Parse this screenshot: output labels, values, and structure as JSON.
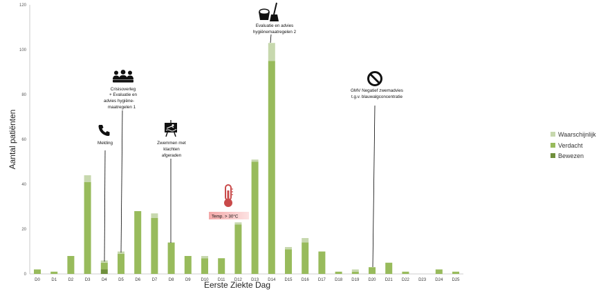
{
  "chart_data": {
    "type": "bar",
    "stacked": true,
    "xlabel": "Eerste Ziekte Dag",
    "ylabel": "Aantal patiënten",
    "ylim": [
      0,
      120
    ],
    "yticks": [
      0,
      20,
      40,
      60,
      80,
      100,
      120
    ],
    "grid": false,
    "legend_position": "right",
    "categories": [
      "D0",
      "D1",
      "D2",
      "D3",
      "D4",
      "D5",
      "D6",
      "D7",
      "D8",
      "D9",
      "D10",
      "D11",
      "D12",
      "D13",
      "D14",
      "D15",
      "D16",
      "D17",
      "D18",
      "D19",
      "D20",
      "D21",
      "D22",
      "D23",
      "D24",
      "D25"
    ],
    "series": [
      {
        "name": "Bewezen",
        "color": "#6f8f3c",
        "values": [
          0,
          0,
          0,
          0,
          2,
          0,
          0,
          0,
          0,
          0,
          0,
          0,
          0,
          0,
          0,
          0,
          0,
          0,
          0,
          0,
          0,
          0,
          0,
          0,
          0,
          0
        ]
      },
      {
        "name": "Verdacht",
        "color": "#98bb5c",
        "values": [
          2,
          1,
          8,
          41,
          3,
          9,
          28,
          25,
          14,
          8,
          7,
          7,
          22,
          50,
          95,
          11,
          14,
          10,
          1,
          1,
          3,
          5,
          1,
          0,
          2,
          1
        ]
      },
      {
        "name": "Waarschijnlijk",
        "color": "#c7d8ae",
        "values": [
          0,
          0,
          0,
          3,
          1,
          1,
          0,
          2,
          0,
          0,
          1,
          0,
          1,
          1,
          8,
          1,
          2,
          0,
          0,
          1,
          0,
          0,
          0,
          0,
          0,
          0
        ]
      }
    ],
    "legend_order": [
      "Waarschijnlijk",
      "Verdacht",
      "Bewezen"
    ],
    "annotations": [
      {
        "category": "D4",
        "icon": "phone-icon",
        "lines": [
          "Melding"
        ]
      },
      {
        "category": "D5",
        "icon": "group-icon",
        "lines": [
          "Crisisoverleg",
          "+ Evaluatie en",
          "advies hygiëne-",
          "maatregelen 1"
        ]
      },
      {
        "category": "D8",
        "icon": "swimmer-sign-icon",
        "lines": [
          "Zwemmen met",
          "klachten",
          "afgeraden"
        ]
      },
      {
        "category": "D14",
        "icon": "cleaning-icon",
        "lines": [
          "Evaluatie en advies",
          "hygiënemaatregelen 2"
        ]
      },
      {
        "category": "D20",
        "icon": "prohibited-icon",
        "lines": [
          "GMV Negatief zwemadvies",
          "t.g.v. blauwalgconcentratie"
        ]
      }
    ],
    "temperature_note": {
      "icon": "thermometer-icon",
      "label": "Temp. > 30°C"
    }
  }
}
